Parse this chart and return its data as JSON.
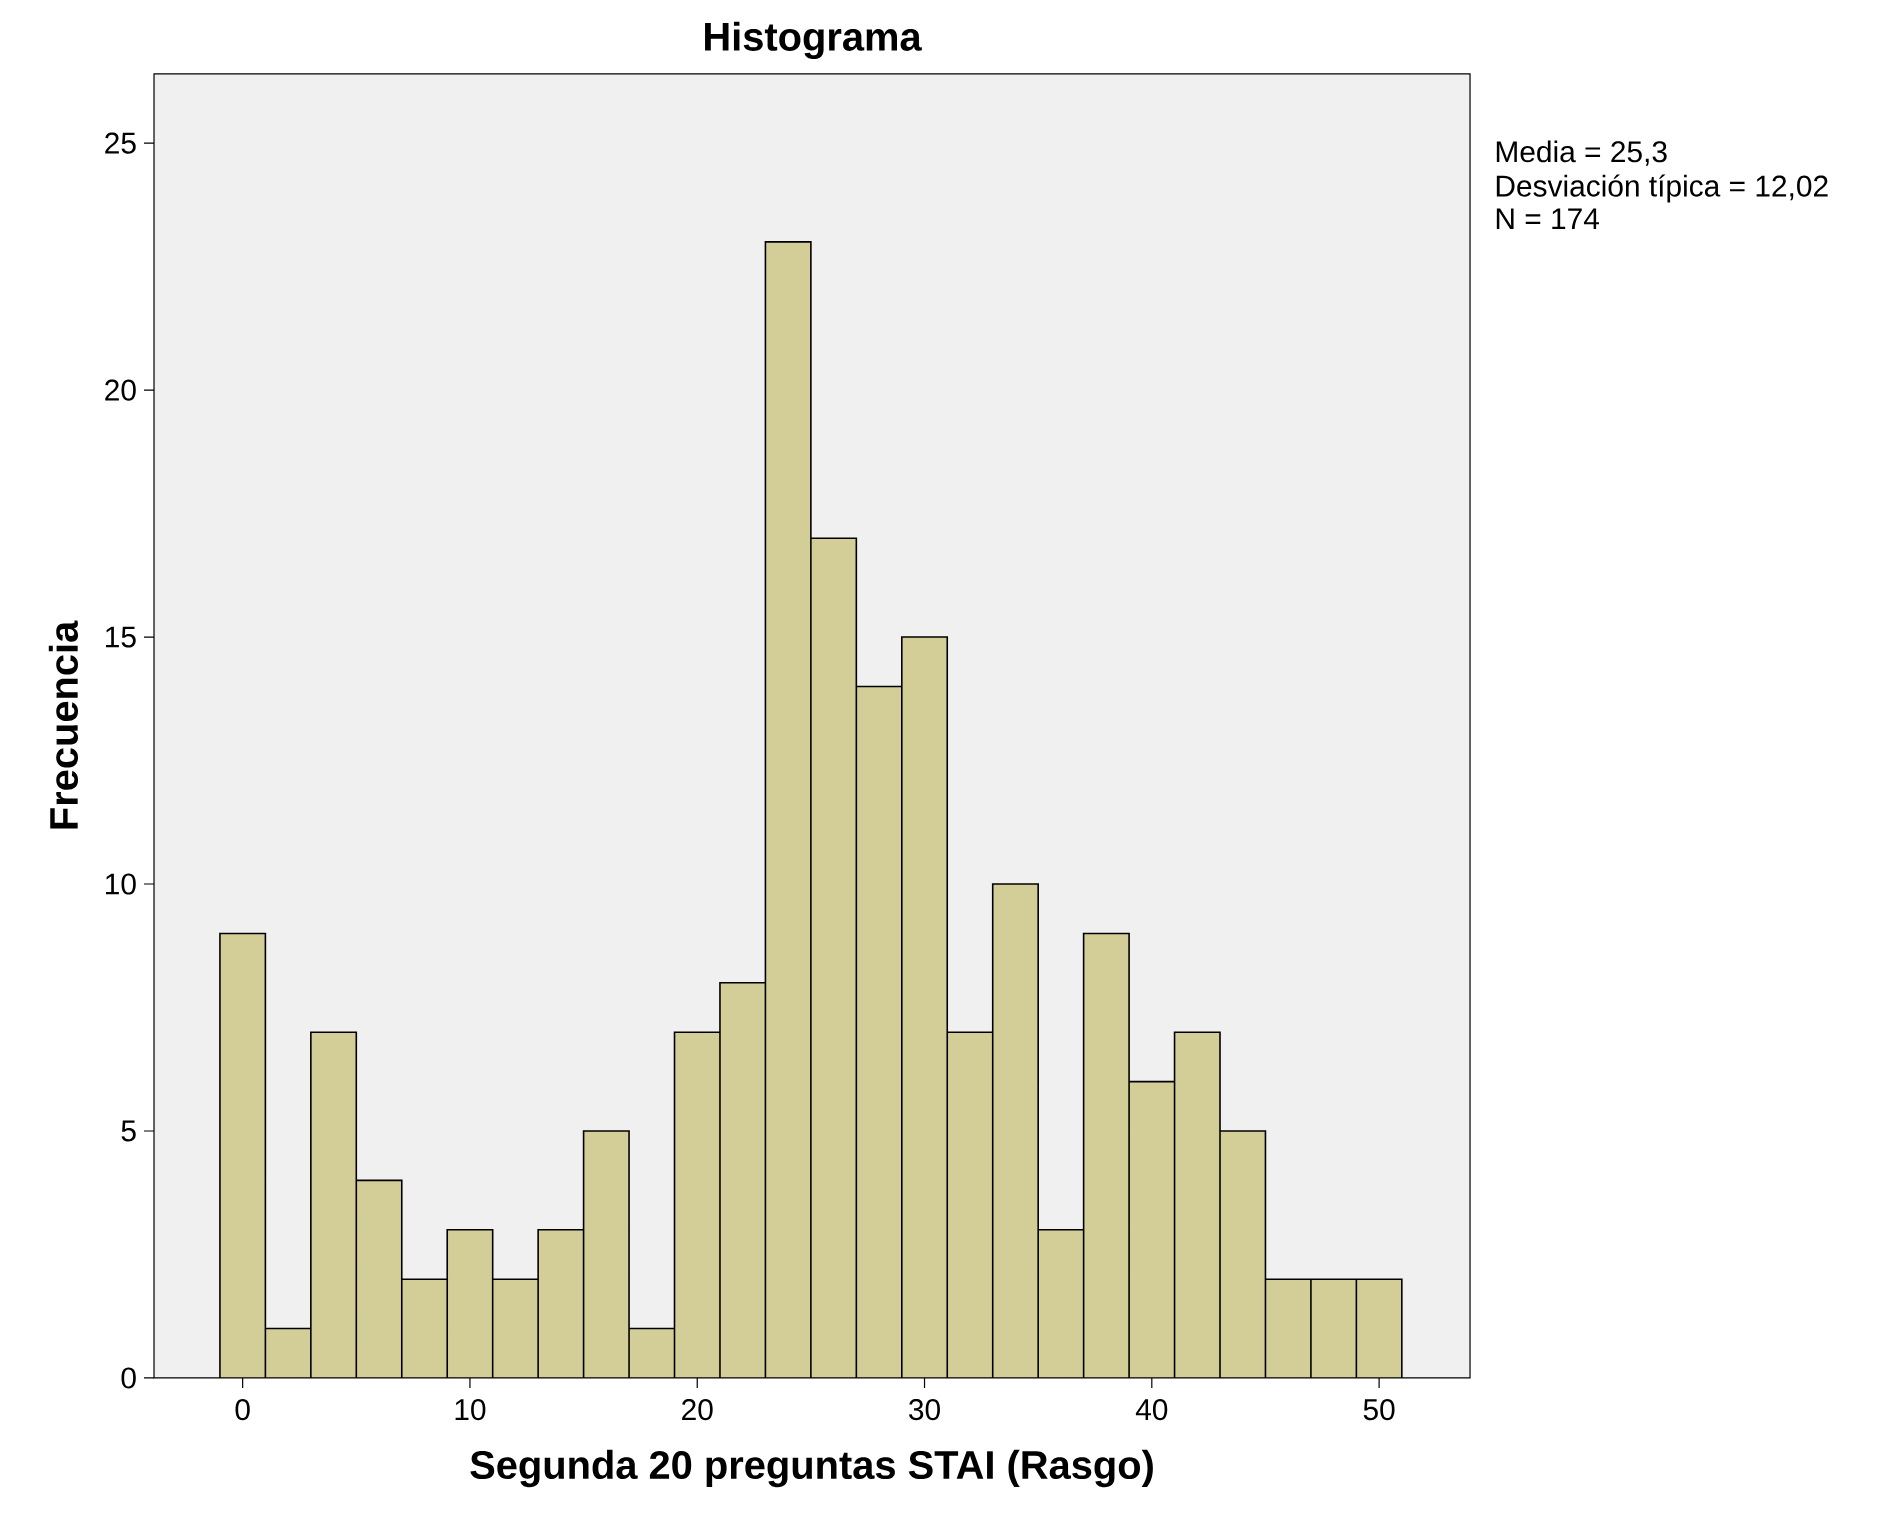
{
  "chart_data": {
    "type": "histogram",
    "title": "Histograma",
    "xlabel": "Segunda 20 preguntas STAI (Rasgo)",
    "ylabel": "Frecuencia",
    "bins": [
      -1,
      1,
      3,
      5,
      7,
      9,
      11,
      13,
      15,
      17,
      19,
      21,
      23,
      25,
      27,
      29,
      31,
      33,
      35,
      37,
      39,
      41,
      43,
      45,
      47,
      49,
      51
    ],
    "values": [
      9,
      1,
      7,
      4,
      2,
      3,
      2,
      3,
      5,
      1,
      7,
      8,
      23,
      17,
      14,
      15,
      7,
      10,
      3,
      9,
      6,
      7,
      5,
      2,
      2,
      2
    ],
    "color": "#d3ce97",
    "xlim": [
      -3.9,
      54
    ],
    "ylim": [
      0,
      26.4
    ],
    "xticks": [
      0,
      10,
      20,
      30,
      40,
      50
    ],
    "yticks": [
      0,
      5,
      10,
      15,
      20,
      25
    ],
    "annotations": [
      "Media = 25,3",
      "Desviación típica = 12,02",
      "N = 174"
    ]
  }
}
